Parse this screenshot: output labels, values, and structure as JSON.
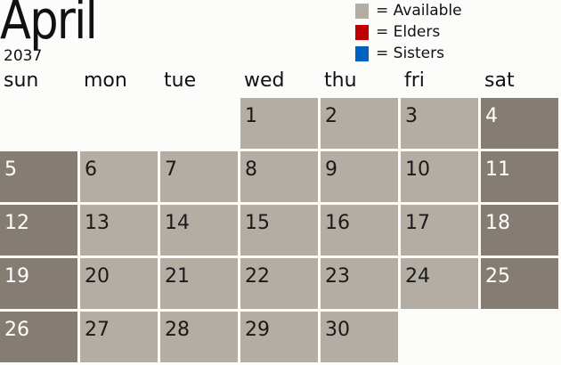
{
  "title": "April",
  "year": "2037",
  "legend": [
    {
      "label": "= Available",
      "color": "#b4ada4"
    },
    {
      "label": "= Elders",
      "color": "#c00000"
    },
    {
      "label": "= Sisters",
      "color": "#0062be"
    }
  ],
  "days": [
    "sun",
    "mon",
    "tue",
    "wed",
    "thu",
    "fri",
    "sat"
  ],
  "first_weekday": 3,
  "num_days": 30,
  "colors": {
    "available": "#b4ada4",
    "weekend": "#857d73"
  }
}
